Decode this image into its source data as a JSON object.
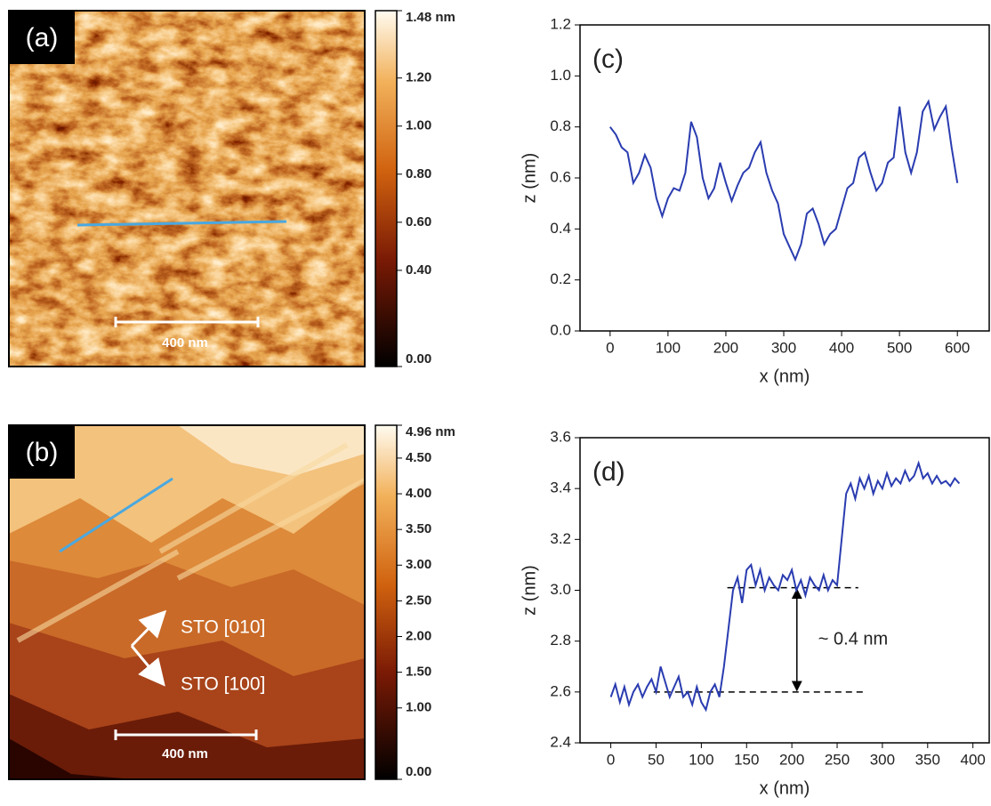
{
  "panels": [
    {
      "label": "(a)",
      "scale_bar": "400 nm",
      "colorbar": {
        "lim": [
          0,
          1.48
        ],
        "ticks": [
          {
            "value": 1.48,
            "label": "1.48 nm"
          },
          {
            "value": 1.2,
            "label": "1.20"
          },
          {
            "value": 1,
            "label": "1.00"
          },
          {
            "value": 0.8,
            "label": "0.80"
          },
          {
            "value": 0.6,
            "label": "0.60"
          },
          {
            "value": 0.4,
            "label": "0.40"
          },
          {
            "value": 0,
            "label": "0.00"
          }
        ]
      }
    },
    {
      "label": "(b)",
      "scale_bar": "400 nm",
      "annotations": [
        "STO [010]",
        "STO [100]"
      ],
      "colorbar": {
        "lim": [
          0,
          4.96
        ],
        "ticks": [
          {
            "value": 4.96,
            "label": "4.96 nm"
          },
          {
            "value": 4.5,
            "label": "4.50"
          },
          {
            "value": 4,
            "label": "4.00"
          },
          {
            "value": 3.5,
            "label": "3.50"
          },
          {
            "value": 3,
            "label": "3.00"
          },
          {
            "value": 2.5,
            "label": "2.50"
          },
          {
            "value": 2,
            "label": "2.00"
          },
          {
            "value": 1.5,
            "label": "1.50"
          },
          {
            "value": 1,
            "label": "1.00"
          },
          {
            "value": 0,
            "label": "0.00"
          }
        ]
      }
    }
  ],
  "chart_data": [
    {
      "type": "line",
      "label": "(c)",
      "xlabel": "x (nm)",
      "ylabel": "z (nm)",
      "color": "#2a3cb0",
      "x": [
        0,
        10,
        20,
        30,
        40,
        50,
        60,
        70,
        80,
        90,
        100,
        110,
        120,
        130,
        140,
        150,
        160,
        170,
        180,
        190,
        200,
        210,
        220,
        230,
        240,
        250,
        260,
        270,
        280,
        290,
        300,
        310,
        320,
        330,
        340,
        350,
        360,
        370,
        380,
        390,
        400,
        410,
        420,
        430,
        440,
        450,
        460,
        470,
        480,
        490,
        500,
        510,
        520,
        530,
        540,
        550,
        560,
        570,
        580,
        590,
        600
      ],
      "values": [
        0.8,
        0.77,
        0.72,
        0.7,
        0.58,
        0.62,
        0.69,
        0.64,
        0.52,
        0.45,
        0.52,
        0.56,
        0.55,
        0.62,
        0.82,
        0.76,
        0.6,
        0.52,
        0.56,
        0.66,
        0.58,
        0.51,
        0.57,
        0.62,
        0.64,
        0.7,
        0.74,
        0.62,
        0.55,
        0.5,
        0.38,
        0.33,
        0.28,
        0.34,
        0.46,
        0.48,
        0.42,
        0.34,
        0.38,
        0.4,
        0.48,
        0.56,
        0.58,
        0.68,
        0.7,
        0.62,
        0.55,
        0.58,
        0.66,
        0.68,
        0.88,
        0.7,
        0.62,
        0.7,
        0.86,
        0.9,
        0.79,
        0.84,
        0.88,
        0.72,
        0.58
      ],
      "xlim": [
        -52,
        655
      ],
      "ylim": [
        0,
        1.2
      ],
      "xticks": [
        0,
        100,
        200,
        300,
        400,
        500,
        600
      ],
      "yticks": [
        {
          "value": 0,
          "label": "0.0"
        },
        0.2,
        0.4,
        0.6,
        0.8,
        {
          "value": 1,
          "label": "1.0"
        },
        1.2
      ]
    },
    {
      "type": "line",
      "label": "(d)",
      "xlabel": "x (nm)",
      "ylabel": "z (nm)",
      "color": "#2a3cb0",
      "x": [
        0,
        5,
        10,
        15,
        20,
        25,
        30,
        35,
        40,
        45,
        50,
        55,
        60,
        65,
        70,
        75,
        80,
        85,
        90,
        95,
        100,
        105,
        110,
        115,
        120,
        125,
        130,
        135,
        140,
        145,
        150,
        155,
        160,
        165,
        170,
        175,
        180,
        185,
        190,
        195,
        200,
        205,
        210,
        215,
        220,
        225,
        230,
        235,
        240,
        245,
        250,
        255,
        260,
        265,
        270,
        275,
        280,
        285,
        290,
        295,
        300,
        305,
        310,
        315,
        320,
        325,
        330,
        335,
        340,
        345,
        350,
        355,
        360,
        365,
        370,
        375,
        380,
        385
      ],
      "values": [
        2.58,
        2.63,
        2.56,
        2.62,
        2.55,
        2.6,
        2.63,
        2.58,
        2.62,
        2.65,
        2.6,
        2.7,
        2.64,
        2.58,
        2.62,
        2.66,
        2.58,
        2.6,
        2.55,
        2.62,
        2.56,
        2.53,
        2.6,
        2.63,
        2.58,
        2.7,
        2.85,
        3.0,
        3.05,
        2.95,
        3.08,
        3.1,
        3.02,
        3.08,
        3.0,
        3.05,
        3.02,
        3.0,
        3.06,
        3.04,
        3.08,
        3.0,
        3.04,
        2.98,
        3.05,
        3.02,
        3.0,
        3.06,
        3.0,
        3.04,
        3.02,
        3.2,
        3.38,
        3.42,
        3.36,
        3.44,
        3.4,
        3.45,
        3.38,
        3.43,
        3.4,
        3.46,
        3.41,
        3.44,
        3.42,
        3.47,
        3.43,
        3.45,
        3.5,
        3.44,
        3.46,
        3.42,
        3.45,
        3.42,
        3.43,
        3.41,
        3.44,
        3.42
      ],
      "xlim": [
        -34,
        418
      ],
      "ylim": [
        2.4,
        3.6
      ],
      "xticks": [
        0,
        50,
        100,
        150,
        200,
        250,
        300,
        350,
        400
      ],
      "yticks": [
        2.4,
        2.6,
        2.8,
        {
          "value": 3,
          "label": "3.0"
        },
        3.2,
        3.4,
        3.6
      ],
      "reference_lines": [
        3.01,
        2.6
      ],
      "annotation": "~ 0.4 nm"
    }
  ]
}
